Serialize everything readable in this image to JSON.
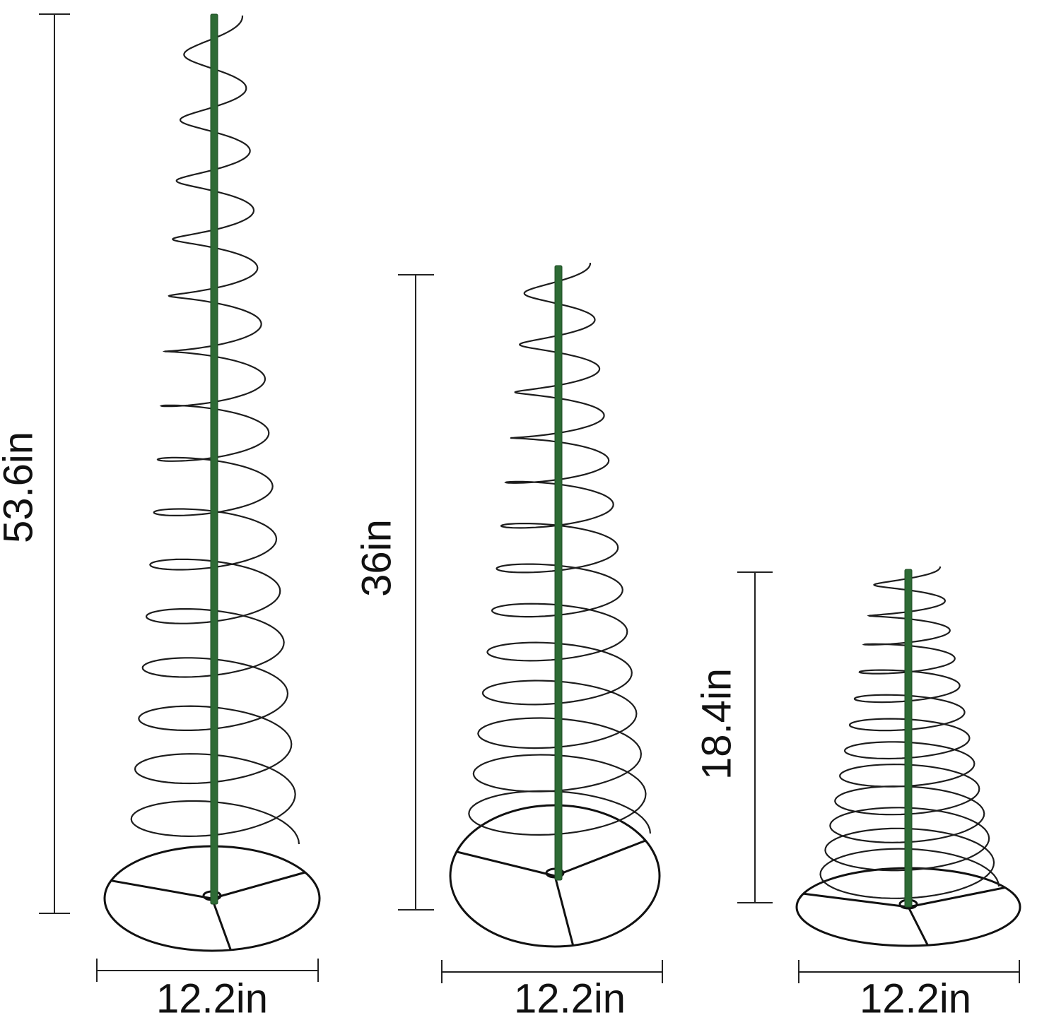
{
  "products": [
    {
      "height": "53.6in",
      "width": "12.2in"
    },
    {
      "height": "36in",
      "width": "12.2in"
    },
    {
      "height": "18.4in",
      "width": "12.2in"
    }
  ]
}
